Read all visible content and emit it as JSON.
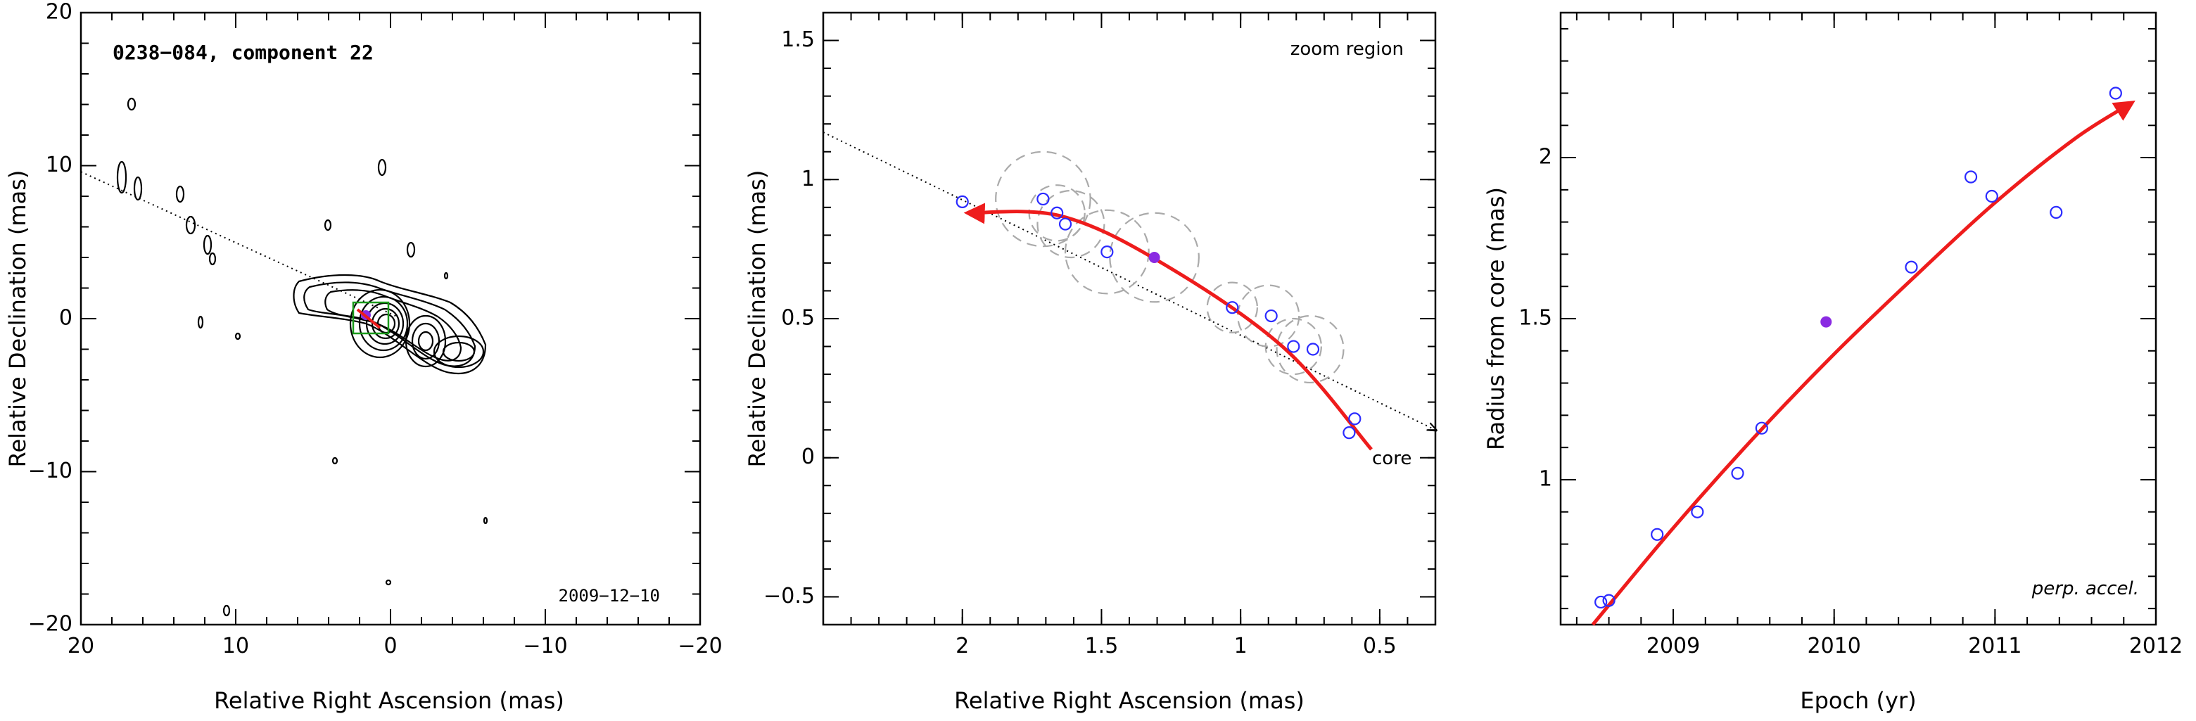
{
  "colors": {
    "track": "#ee1c1c",
    "open_points": "#2b2bff",
    "filled_point": "#8a2be2",
    "gaussian_circles": "#aaaaaa",
    "box": "#1a9a1a"
  },
  "chart_data": [
    {
      "type": "contour",
      "title": "0238−084, component 22",
      "date_label": "2009−12−10",
      "xlabel": "Relative Right Ascension (mas)",
      "ylabel": "Relative Declination (mas)",
      "xlim": [
        20,
        -20
      ],
      "ylim": [
        -20,
        20
      ],
      "xticks": [
        "20",
        "10",
        "0",
        "−10",
        "−20"
      ],
      "yticks": [
        "−20",
        "−10",
        "0",
        "10",
        "20"
      ],
      "jet_direction_line": [
        [
          20,
          9.6
        ],
        [
          -0.5,
          0.1
        ]
      ],
      "core_position": [
        0,
        0
      ]
    },
    {
      "type": "scatter",
      "annotation": "zoom region",
      "core_label": "core",
      "xlabel": "Relative Right Ascension (mas)",
      "ylabel": "Relative Declination (mas)",
      "xlim": [
        2.5,
        0.3
      ],
      "ylim": [
        -0.6,
        1.6
      ],
      "xticks": [
        "2",
        "1.5",
        "1",
        "0.5"
      ],
      "yticks": [
        "−0.5",
        "0",
        "0.5",
        "1",
        "1.5"
      ],
      "points_open": [
        {
          "x": 2.0,
          "y": 0.92
        },
        {
          "x": 1.71,
          "y": 0.93
        },
        {
          "x": 1.66,
          "y": 0.88
        },
        {
          "x": 1.63,
          "y": 0.84
        },
        {
          "x": 1.48,
          "y": 0.74
        },
        {
          "x": 1.03,
          "y": 0.54
        },
        {
          "x": 0.89,
          "y": 0.51
        },
        {
          "x": 0.81,
          "y": 0.4
        },
        {
          "x": 0.74,
          "y": 0.39
        },
        {
          "x": 0.59,
          "y": 0.14
        },
        {
          "x": 0.61,
          "y": 0.09
        }
      ],
      "point_filled": {
        "x": 1.31,
        "y": 0.72
      },
      "gaussian_circles": [
        {
          "x": 1.71,
          "y": 0.93,
          "r": 0.17
        },
        {
          "x": 1.66,
          "y": 0.88,
          "r": 0.1
        },
        {
          "x": 1.61,
          "y": 0.84,
          "r": 0.12
        },
        {
          "x": 1.48,
          "y": 0.74,
          "r": 0.15
        },
        {
          "x": 1.31,
          "y": 0.72,
          "r": 0.16
        },
        {
          "x": 1.03,
          "y": 0.54,
          "r": 0.09
        },
        {
          "x": 0.9,
          "y": 0.51,
          "r": 0.11
        },
        {
          "x": 0.81,
          "y": 0.4,
          "r": 0.1
        },
        {
          "x": 0.75,
          "y": 0.39,
          "r": 0.12
        }
      ],
      "track": [
        [
          0.53,
          0.03
        ],
        [
          0.85,
          0.4
        ],
        [
          1.3,
          0.71
        ],
        [
          1.65,
          0.87
        ],
        [
          1.98,
          0.88
        ]
      ],
      "direction_line": [
        [
          2.5,
          1.17
        ],
        [
          0.3,
          0.1
        ]
      ]
    },
    {
      "type": "scatter",
      "annotation": "perp. accel.",
      "xlabel": "Epoch (yr)",
      "ylabel": "Radius from core (mas)",
      "xlim": [
        2008.3,
        2012.0
      ],
      "ylim": [
        0.55,
        2.45
      ],
      "xticks": [
        "2009",
        "2010",
        "2011",
        "2012"
      ],
      "yticks": [
        "1",
        "1.5",
        "2"
      ],
      "points_open": [
        {
          "x": 2008.55,
          "y": 0.62
        },
        {
          "x": 2008.6,
          "y": 0.625
        },
        {
          "x": 2008.9,
          "y": 0.83
        },
        {
          "x": 2009.15,
          "y": 0.9
        },
        {
          "x": 2009.4,
          "y": 1.02
        },
        {
          "x": 2009.55,
          "y": 1.16
        },
        {
          "x": 2010.48,
          "y": 1.66
        },
        {
          "x": 2010.85,
          "y": 1.94
        },
        {
          "x": 2010.98,
          "y": 1.88
        },
        {
          "x": 2011.38,
          "y": 1.83
        },
        {
          "x": 2011.75,
          "y": 2.2
        }
      ],
      "point_filled": {
        "x": 2009.95,
        "y": 1.49
      },
      "track": [
        [
          2008.5,
          0.55
        ],
        [
          2009.0,
          0.85
        ],
        [
          2009.5,
          1.13
        ],
        [
          2010.0,
          1.39
        ],
        [
          2010.5,
          1.63
        ],
        [
          2011.0,
          1.86
        ],
        [
          2011.5,
          2.06
        ],
        [
          2011.85,
          2.17
        ]
      ]
    }
  ]
}
